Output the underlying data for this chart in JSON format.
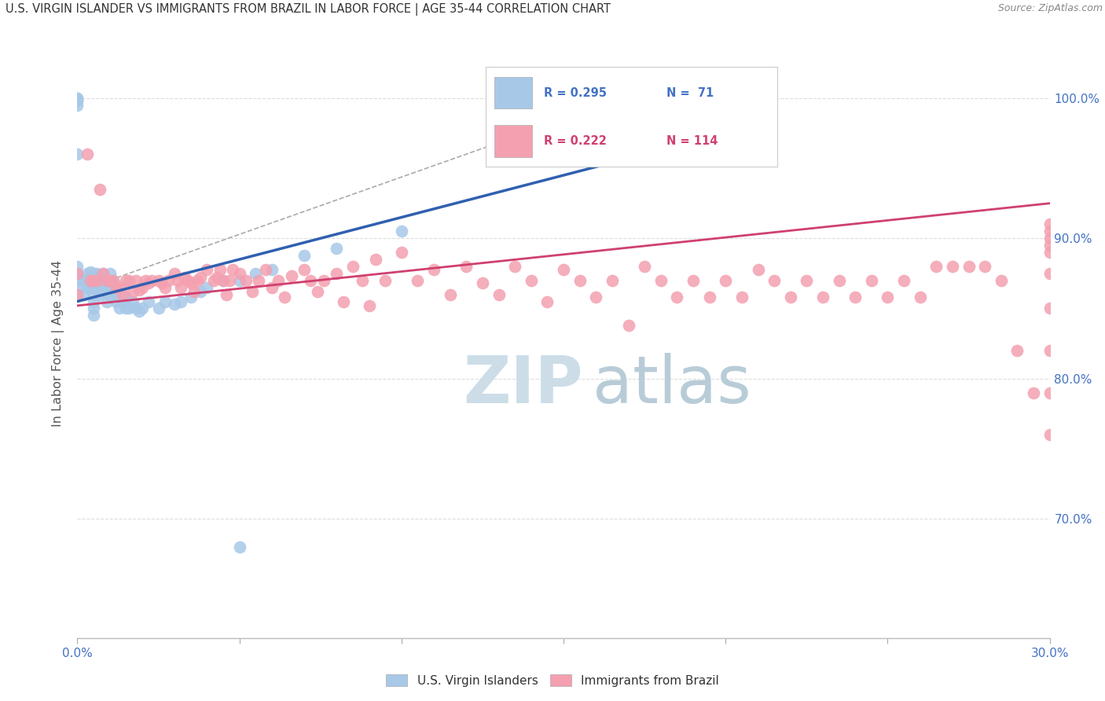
{
  "title": "U.S. VIRGIN ISLANDER VS IMMIGRANTS FROM BRAZIL IN LABOR FORCE | AGE 35-44 CORRELATION CHART",
  "source": "Source: ZipAtlas.com",
  "ylabel": "In Labor Force | Age 35-44",
  "xlim": [
    0.0,
    0.3
  ],
  "ylim": [
    0.615,
    1.035
  ],
  "xticks": [
    0.0,
    0.05,
    0.1,
    0.15,
    0.2,
    0.25,
    0.3
  ],
  "xticklabels": [
    "0.0%",
    "",
    "",
    "",
    "",
    "",
    "30.0%"
  ],
  "yticks_right": [
    0.7,
    0.8,
    0.9,
    1.0
  ],
  "ytick_labels_right": [
    "70.0%",
    "80.0%",
    "90.0%",
    "100.0%"
  ],
  "blue_R": "R = 0.295",
  "blue_N": "N =  71",
  "pink_R": "R = 0.222",
  "pink_N": "N = 114",
  "blue_color": "#a8c8e8",
  "pink_color": "#f4a0b0",
  "blue_line_color": "#3060b0",
  "pink_line_color": "#d04070",
  "legend_R_color_blue": "#4472c4",
  "legend_R_color_pink": "#d04070",
  "grid_color": "#dddddd",
  "watermark_ZIP_color": "#ccdde8",
  "watermark_atlas_color": "#b8ccd8",
  "legend_label_blue": "U.S. Virgin Islanders",
  "legend_label_pink": "Immigrants from Brazil",
  "blue_scatter_x": [
    0.0,
    0.0,
    0.0,
    0.0,
    0.0,
    0.0,
    0.0,
    0.0,
    0.0,
    0.0,
    0.0,
    0.0,
    0.002,
    0.002,
    0.003,
    0.003,
    0.003,
    0.004,
    0.004,
    0.004,
    0.005,
    0.005,
    0.005,
    0.005,
    0.005,
    0.005,
    0.005,
    0.006,
    0.006,
    0.007,
    0.007,
    0.007,
    0.008,
    0.008,
    0.008,
    0.009,
    0.009,
    0.009,
    0.01,
    0.01,
    0.01,
    0.011,
    0.011,
    0.012,
    0.012,
    0.013,
    0.013,
    0.014,
    0.015,
    0.015,
    0.016,
    0.017,
    0.018,
    0.019,
    0.02,
    0.022,
    0.025,
    0.027,
    0.03,
    0.032,
    0.035,
    0.038,
    0.04,
    0.045,
    0.05,
    0.055,
    0.06,
    0.07,
    0.08,
    0.1,
    0.05
  ],
  "blue_scatter_y": [
    0.998,
    0.998,
    1.0,
    1.0,
    0.995,
    0.96,
    0.88,
    0.875,
    0.875,
    0.87,
    0.865,
    0.86,
    0.87,
    0.86,
    0.875,
    0.87,
    0.865,
    0.876,
    0.87,
    0.865,
    0.875,
    0.87,
    0.865,
    0.86,
    0.855,
    0.85,
    0.845,
    0.875,
    0.87,
    0.87,
    0.865,
    0.86,
    0.875,
    0.868,
    0.862,
    0.87,
    0.865,
    0.855,
    0.875,
    0.865,
    0.86,
    0.87,
    0.862,
    0.862,
    0.855,
    0.858,
    0.85,
    0.855,
    0.858,
    0.85,
    0.85,
    0.855,
    0.85,
    0.848,
    0.85,
    0.855,
    0.85,
    0.855,
    0.853,
    0.855,
    0.858,
    0.862,
    0.865,
    0.87,
    0.87,
    0.875,
    0.878,
    0.888,
    0.893,
    0.905,
    0.68
  ],
  "pink_scatter_x": [
    0.0,
    0.0,
    0.003,
    0.004,
    0.005,
    0.006,
    0.007,
    0.008,
    0.009,
    0.01,
    0.011,
    0.012,
    0.013,
    0.014,
    0.015,
    0.016,
    0.017,
    0.018,
    0.019,
    0.02,
    0.021,
    0.022,
    0.023,
    0.025,
    0.026,
    0.027,
    0.028,
    0.03,
    0.031,
    0.032,
    0.033,
    0.034,
    0.035,
    0.036,
    0.037,
    0.038,
    0.04,
    0.042,
    0.043,
    0.044,
    0.045,
    0.046,
    0.047,
    0.048,
    0.05,
    0.052,
    0.054,
    0.056,
    0.058,
    0.06,
    0.062,
    0.064,
    0.066,
    0.07,
    0.072,
    0.074,
    0.076,
    0.08,
    0.082,
    0.085,
    0.088,
    0.09,
    0.092,
    0.095,
    0.1,
    0.105,
    0.11,
    0.115,
    0.12,
    0.125,
    0.13,
    0.135,
    0.14,
    0.145,
    0.15,
    0.155,
    0.16,
    0.165,
    0.17,
    0.175,
    0.18,
    0.185,
    0.19,
    0.195,
    0.2,
    0.205,
    0.21,
    0.215,
    0.22,
    0.225,
    0.23,
    0.235,
    0.24,
    0.245,
    0.25,
    0.255,
    0.26,
    0.265,
    0.27,
    0.275,
    0.28,
    0.285,
    0.29,
    0.295,
    0.3,
    0.3,
    0.3,
    0.3,
    0.3,
    0.3,
    0.3,
    0.3,
    0.3,
    0.3
  ],
  "pink_scatter_y": [
    0.875,
    0.86,
    0.96,
    0.87,
    0.87,
    0.87,
    0.935,
    0.875,
    0.87,
    0.87,
    0.87,
    0.865,
    0.865,
    0.86,
    0.87,
    0.87,
    0.862,
    0.87,
    0.863,
    0.865,
    0.87,
    0.868,
    0.87,
    0.87,
    0.868,
    0.865,
    0.87,
    0.875,
    0.87,
    0.865,
    0.872,
    0.87,
    0.868,
    0.862,
    0.87,
    0.872,
    0.878,
    0.87,
    0.872,
    0.878,
    0.87,
    0.86,
    0.87,
    0.878,
    0.875,
    0.87,
    0.862,
    0.87,
    0.878,
    0.865,
    0.87,
    0.858,
    0.873,
    0.878,
    0.87,
    0.862,
    0.87,
    0.875,
    0.855,
    0.88,
    0.87,
    0.852,
    0.885,
    0.87,
    0.89,
    0.87,
    0.878,
    0.86,
    0.88,
    0.868,
    0.86,
    0.88,
    0.87,
    0.855,
    0.878,
    0.87,
    0.858,
    0.87,
    0.838,
    0.88,
    0.87,
    0.858,
    0.87,
    0.858,
    0.87,
    0.858,
    0.878,
    0.87,
    0.858,
    0.87,
    0.858,
    0.87,
    0.858,
    0.87,
    0.858,
    0.87,
    0.858,
    0.88,
    0.88,
    0.88,
    0.88,
    0.87,
    0.82,
    0.79,
    0.76,
    0.79,
    0.82,
    0.85,
    0.875,
    0.89,
    0.895,
    0.9,
    0.905,
    0.91
  ],
  "blue_trend_x": [
    0.0,
    0.175
  ],
  "blue_trend_y": [
    0.855,
    0.96
  ],
  "pink_trend_x": [
    0.0,
    0.3
  ],
  "pink_trend_y": [
    0.852,
    0.925
  ],
  "dashed_line_x": [
    0.0,
    0.175
  ],
  "dashed_line_y": [
    0.862,
    1.005
  ]
}
